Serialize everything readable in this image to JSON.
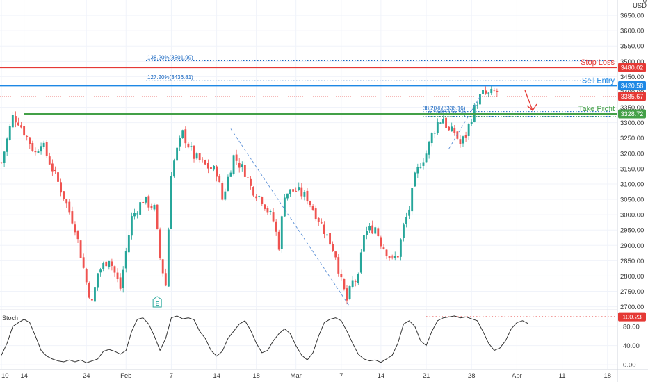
{
  "chart_data": {
    "type": "candlestick",
    "currency": "USD",
    "top_corner_label": "0",
    "y_ticks": [
      2700,
      2750,
      2800,
      2850,
      2900,
      2950,
      3000,
      3050,
      3100,
      3150,
      3200,
      3250,
      3300,
      3350,
      3400,
      3450,
      3500,
      3550,
      3600,
      3650
    ],
    "y_tick_labels": [
      "2700.00",
      "2750.00",
      "2800.00",
      "2850.00",
      "2900.00",
      "2950.00",
      "3000.00",
      "3050.00",
      "3100.00",
      "3150.00",
      "3200.00",
      "3250.00",
      "3300.00",
      "3350.00",
      "3400.00",
      "3450.00",
      "3500.00",
      "3550.00",
      "3600.00",
      "3650.00"
    ],
    "ylim": [
      2690,
      3700
    ],
    "x_tick_labels": [
      "10",
      "14",
      "24",
      "Feb",
      "7",
      "14",
      "18",
      "Mar",
      "7",
      "14",
      "21",
      "28",
      "Apr",
      "11",
      "18"
    ],
    "x_tick_bars": [
      0,
      8,
      30,
      44,
      60,
      76,
      90,
      104,
      120,
      134,
      150,
      166,
      182,
      198,
      214
    ],
    "total_bars": 218,
    "visible_bars": 176,
    "close_path": [
      [
        0,
        3170
      ],
      [
        4,
        3320
      ],
      [
        6,
        3305
      ],
      [
        12,
        3200
      ],
      [
        14,
        3240
      ],
      [
        16,
        3195
      ],
      [
        22,
        3060
      ],
      [
        26,
        2960
      ],
      [
        30,
        2780
      ],
      [
        32,
        2710
      ],
      [
        34,
        2810
      ],
      [
        38,
        2860
      ],
      [
        42,
        2760
      ],
      [
        44,
        2880
      ],
      [
        46,
        2990
      ],
      [
        50,
        3050
      ],
      [
        54,
        3020
      ],
      [
        56,
        2860
      ],
      [
        58,
        2770
      ],
      [
        60,
        3140
      ],
      [
        62,
        3210
      ],
      [
        64,
        3265
      ],
      [
        68,
        3190
      ],
      [
        72,
        3160
      ],
      [
        76,
        3140
      ],
      [
        78,
        3050
      ],
      [
        82,
        3190
      ],
      [
        86,
        3140
      ],
      [
        88,
        3090
      ],
      [
        92,
        3050
      ],
      [
        96,
        2980
      ],
      [
        98,
        2900
      ],
      [
        100,
        3070
      ],
      [
        104,
        3080
      ],
      [
        108,
        3055
      ],
      [
        110,
        3020
      ],
      [
        114,
        2950
      ],
      [
        118,
        2870
      ],
      [
        120,
        2780
      ],
      [
        122,
        2720
      ],
      [
        124,
        2780
      ],
      [
        126,
        2790
      ],
      [
        128,
        2940
      ],
      [
        132,
        2960
      ],
      [
        134,
        2910
      ],
      [
        136,
        2880
      ],
      [
        138,
        2850
      ],
      [
        140,
        2870
      ],
      [
        142,
        2960
      ],
      [
        144,
        3020
      ],
      [
        146,
        3120
      ],
      [
        148,
        3170
      ],
      [
        150,
        3200
      ],
      [
        152,
        3260
      ],
      [
        154,
        3300
      ],
      [
        156,
        3315
      ],
      [
        158,
        3270
      ],
      [
        160,
        3270
      ],
      [
        162,
        3230
      ],
      [
        164,
        3260
      ],
      [
        166,
        3320
      ],
      [
        168,
        3370
      ],
      [
        170,
        3395
      ],
      [
        172,
        3390
      ],
      [
        174,
        3400
      ],
      [
        175,
        3400
      ]
    ],
    "ohlc_seed": 7,
    "price_levels": [
      {
        "label": "Stop Loss",
        "price_tag": "3480.02",
        "value": 3480.02,
        "color": "#e53935",
        "style": "solid"
      },
      {
        "label": "Sell Entry",
        "price_tag": "3420.58",
        "value": 3420.58,
        "color": "#1e88e5",
        "style": "solid"
      },
      {
        "label": "Take Profit",
        "price_tag": "3328.72",
        "value": 3328.72,
        "color": "#43a047",
        "style": "solid"
      }
    ],
    "current_price": {
      "price_tag": "3385.67",
      "value": 3385.67,
      "color": "#e53935"
    },
    "fib_levels": [
      {
        "text": "138.20%(3501.99)",
        "value": 3501.99,
        "color": "#1565c0"
      },
      {
        "text": "127.20%(3436.81)",
        "value": 3436.81,
        "color": "#1565c0"
      },
      {
        "text": "38.20%(3336.16)",
        "value": 3336.16,
        "color": "#1565c0"
      },
      {
        "text": "0.786(3320.76)",
        "value": 3320.76,
        "color": "#1565c0"
      }
    ],
    "trend_lines": [
      {
        "from": [
          81,
          3280
        ],
        "to": [
          123,
          2700
        ]
      },
      {
        "from": [
          158,
          3215
        ],
        "to": [
          169,
          3385
        ]
      }
    ],
    "earnings_marker": {
      "text": "E",
      "bar": 56
    },
    "stochastic": {
      "label": "Stoch",
      "y_ticks": [
        0,
        40,
        80
      ],
      "y_tick_labels": [
        "0.00",
        "40.00",
        "80.00"
      ],
      "ylim": [
        -10,
        115
      ],
      "marker_label": "100.23",
      "marker_value": 100.23,
      "line_color": "#333333",
      "marker_color": "#e53935",
      "values": [
        [
          0,
          20
        ],
        [
          2,
          45
        ],
        [
          4,
          80
        ],
        [
          6,
          88
        ],
        [
          8,
          95
        ],
        [
          10,
          88
        ],
        [
          12,
          60
        ],
        [
          14,
          30
        ],
        [
          16,
          18
        ],
        [
          18,
          12
        ],
        [
          20,
          8
        ],
        [
          22,
          6
        ],
        [
          24,
          10
        ],
        [
          26,
          6
        ],
        [
          28,
          10
        ],
        [
          30,
          4
        ],
        [
          32,
          8
        ],
        [
          34,
          12
        ],
        [
          36,
          28
        ],
        [
          38,
          32
        ],
        [
          40,
          28
        ],
        [
          42,
          22
        ],
        [
          44,
          30
        ],
        [
          46,
          70
        ],
        [
          48,
          95
        ],
        [
          50,
          98
        ],
        [
          52,
          85
        ],
        [
          54,
          60
        ],
        [
          56,
          30
        ],
        [
          58,
          55
        ],
        [
          60,
          98
        ],
        [
          62,
          102
        ],
        [
          64,
          96
        ],
        [
          66,
          98
        ],
        [
          68,
          94
        ],
        [
          70,
          70
        ],
        [
          72,
          55
        ],
        [
          74,
          30
        ],
        [
          76,
          18
        ],
        [
          78,
          28
        ],
        [
          80,
          55
        ],
        [
          82,
          70
        ],
        [
          84,
          85
        ],
        [
          86,
          92
        ],
        [
          88,
          72
        ],
        [
          90,
          45
        ],
        [
          92,
          25
        ],
        [
          94,
          30
        ],
        [
          96,
          50
        ],
        [
          98,
          65
        ],
        [
          100,
          75
        ],
        [
          102,
          65
        ],
        [
          104,
          40
        ],
        [
          106,
          20
        ],
        [
          108,
          10
        ],
        [
          110,
          25
        ],
        [
          112,
          60
        ],
        [
          114,
          88
        ],
        [
          116,
          95
        ],
        [
          118,
          98
        ],
        [
          120,
          92
        ],
        [
          122,
          70
        ],
        [
          124,
          45
        ],
        [
          126,
          22
        ],
        [
          128,
          12
        ],
        [
          130,
          8
        ],
        [
          132,
          10
        ],
        [
          134,
          5
        ],
        [
          136,
          12
        ],
        [
          138,
          20
        ],
        [
          140,
          45
        ],
        [
          142,
          85
        ],
        [
          144,
          92
        ],
        [
          146,
          80
        ],
        [
          148,
          50
        ],
        [
          150,
          40
        ],
        [
          152,
          70
        ],
        [
          154,
          92
        ],
        [
          156,
          98
        ],
        [
          158,
          100
        ],
        [
          160,
          102
        ],
        [
          162,
          98
        ],
        [
          164,
          100
        ],
        [
          166,
          96
        ],
        [
          168,
          92
        ],
        [
          170,
          70
        ],
        [
          172,
          45
        ],
        [
          174,
          30
        ],
        [
          176,
          35
        ],
        [
          178,
          50
        ],
        [
          180,
          75
        ],
        [
          182,
          88
        ],
        [
          184,
          92
        ],
        [
          186,
          86
        ]
      ]
    }
  }
}
